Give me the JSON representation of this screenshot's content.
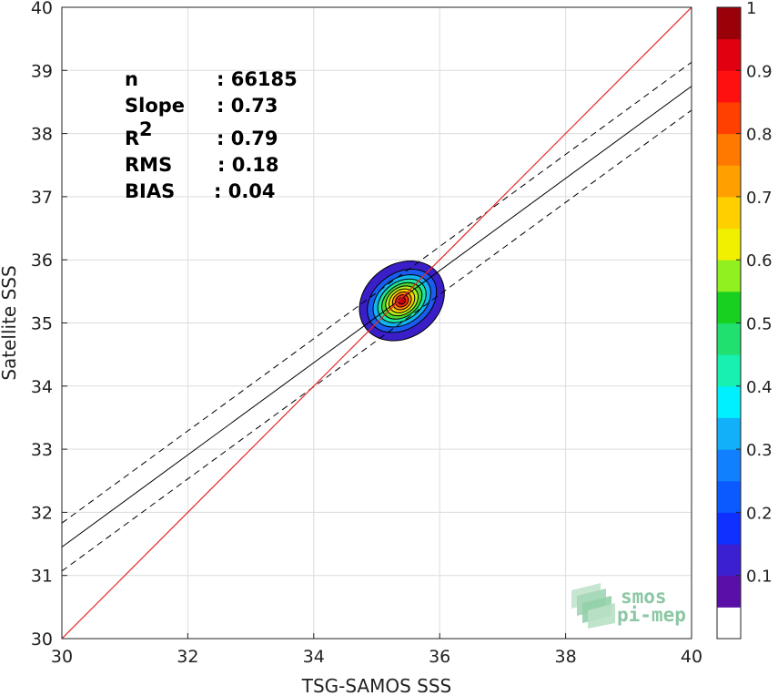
{
  "chart_data": {
    "type": "scatter",
    "subtype": "density-contour",
    "xlabel": "TSG-SAMOS SSS",
    "ylabel": "Satellite SSS",
    "xlim": [
      30,
      40
    ],
    "ylim": [
      30,
      40
    ],
    "x_ticks": [
      "30",
      "32",
      "34",
      "36",
      "38",
      "40"
    ],
    "y_ticks": [
      "30",
      "31",
      "32",
      "33",
      "34",
      "35",
      "36",
      "37",
      "38",
      "39",
      "40"
    ],
    "grid": true,
    "stats": [
      {
        "label": "n",
        "value": ": 66185"
      },
      {
        "label": "Slope",
        "value": ": 0.73"
      },
      {
        "label": "R",
        "label_sup": "2",
        "value": ": 0.79"
      },
      {
        "label": "RMS",
        "value": ": 0.18"
      },
      {
        "label": "BIAS",
        "value": ": 0.04"
      }
    ],
    "identity_line": {
      "x": [
        30,
        40
      ],
      "y": [
        30,
        40
      ],
      "color": "#e8262a"
    },
    "regression_line": {
      "x": [
        30,
        40
      ],
      "y": [
        31.45,
        38.75
      ],
      "color": "#000000"
    },
    "regression_bounds_dashed": [
      {
        "x": [
          30,
          40
        ],
        "y": [
          31.83,
          39.13
        ]
      },
      {
        "x": [
          30,
          40
        ],
        "y": [
          31.07,
          38.37
        ]
      }
    ],
    "density_center": {
      "x": 35.4,
      "y": 35.35
    },
    "density_levels": [
      {
        "level": 0.05,
        "color": "#3a1fc8",
        "rx": 0.72,
        "ry": 0.58
      },
      {
        "level": 0.15,
        "color": "#1a5cf0",
        "rx": 0.6,
        "ry": 0.44
      },
      {
        "level": 0.25,
        "color": "#12b5f2",
        "rx": 0.5,
        "ry": 0.36
      },
      {
        "level": 0.35,
        "color": "#1fe6a0",
        "rx": 0.42,
        "ry": 0.3
      },
      {
        "level": 0.45,
        "color": "#4dd832",
        "rx": 0.35,
        "ry": 0.25
      },
      {
        "level": 0.55,
        "color": "#b5f01a",
        "rx": 0.28,
        "ry": 0.21
      },
      {
        "level": 0.65,
        "color": "#ffd400",
        "rx": 0.22,
        "ry": 0.17
      },
      {
        "level": 0.75,
        "color": "#ff8a00",
        "rx": 0.16,
        "ry": 0.13
      },
      {
        "level": 0.85,
        "color": "#ff2a10",
        "rx": 0.11,
        "ry": 0.09
      },
      {
        "level": 0.95,
        "color": "#c80010",
        "rx": 0.06,
        "ry": 0.05
      }
    ],
    "colorbar": {
      "min": 0,
      "max": 1,
      "tick_labels": [
        "0.1",
        "0.2",
        "0.3",
        "0.4",
        "0.5",
        "0.6",
        "0.7",
        "0.8",
        "0.9",
        "1"
      ],
      "tick_values": [
        0.1,
        0.2,
        0.3,
        0.4,
        0.5,
        0.6,
        0.7,
        0.8,
        0.9,
        1.0
      ],
      "colors": [
        "#ffffff",
        "#5a10a8",
        "#3a20d0",
        "#1030ff",
        "#0a5aff",
        "#1080ff",
        "#12b0f8",
        "#00f0ff",
        "#18f0b0",
        "#20e070",
        "#18d020",
        "#90f020",
        "#f0f000",
        "#ffd000",
        "#ffa000",
        "#ff7800",
        "#ff4000",
        "#ff1010",
        "#e00010",
        "#9a0008"
      ]
    }
  },
  "logo": {
    "line1": "smos",
    "line2": "pi-mep"
  }
}
